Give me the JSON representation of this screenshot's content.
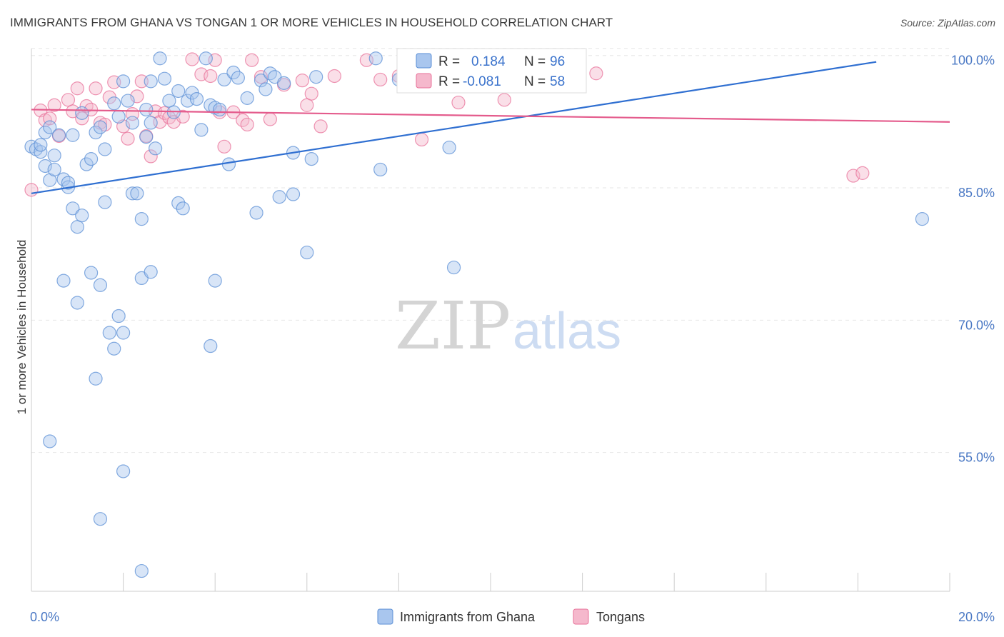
{
  "title": "IMMIGRANTS FROM GHANA VS TONGAN 1 OR MORE VEHICLES IN HOUSEHOLD CORRELATION CHART",
  "source": "Source: ZipAtlas.com",
  "watermark": {
    "zip": "ZIP",
    "atlas": "atlas"
  },
  "colors": {
    "ghana": "#5b8fd6",
    "ghana_fill": "#a9c6ee",
    "tongan": "#e8729a",
    "tongan_fill": "#f5b8cc"
  },
  "legend_top": [
    {
      "series": "ghana",
      "r_label": "R =",
      "r_value": "0.184",
      "n_label": "N =",
      "n_value": "96"
    },
    {
      "series": "tongan",
      "r_label": "R =",
      "r_value": "-0.081",
      "n_label": "N =",
      "n_value": "58"
    }
  ],
  "chart_data": {
    "type": "scatter",
    "title": "IMMIGRANTS FROM GHANA VS TONGAN 1 OR MORE VEHICLES IN HOUSEHOLD CORRELATION CHART",
    "xlabel": "",
    "ylabel": "1 or more Vehicles in Household",
    "xlim": [
      0,
      20
    ],
    "ylim": [
      40,
      102
    ],
    "x_tick_labels": [
      "0.0%",
      "20.0%"
    ],
    "y_ticks": [
      55,
      70,
      85,
      100
    ],
    "y_tick_labels": [
      "55.0%",
      "70.0%",
      "85.0%",
      "100.0%"
    ],
    "grid": true,
    "legend_position": "bottom",
    "series": [
      {
        "name": "Immigrants from Ghana",
        "key": "ghana",
        "trend": {
          "x0": 0,
          "y0": 85.1,
          "x1": 18.4,
          "y1": 100.0
        },
        "points": [
          [
            0.0,
            90.4
          ],
          [
            0.1,
            90.1
          ],
          [
            0.2,
            89.8
          ],
          [
            0.3,
            88.2
          ],
          [
            0.3,
            92.0
          ],
          [
            0.4,
            86.6
          ],
          [
            0.4,
            92.6
          ],
          [
            0.5,
            89.4
          ],
          [
            0.5,
            87.8
          ],
          [
            0.6,
            91.7
          ],
          [
            0.7,
            86.7
          ],
          [
            0.8,
            85.8
          ],
          [
            0.9,
            83.4
          ],
          [
            0.9,
            91.7
          ],
          [
            1.0,
            81.3
          ],
          [
            1.1,
            82.6
          ],
          [
            1.2,
            88.4
          ],
          [
            1.3,
            89.0
          ],
          [
            1.4,
            92.0
          ],
          [
            1.5,
            92.6
          ],
          [
            1.6,
            90.1
          ],
          [
            1.6,
            84.1
          ],
          [
            1.8,
            95.3
          ],
          [
            1.9,
            93.8
          ],
          [
            2.0,
            97.8
          ],
          [
            2.1,
            95.6
          ],
          [
            2.2,
            93.1
          ],
          [
            2.2,
            85.1
          ],
          [
            2.3,
            85.1
          ],
          [
            2.4,
            82.2
          ],
          [
            2.5,
            94.6
          ],
          [
            2.6,
            97.8
          ],
          [
            2.6,
            93.1
          ],
          [
            2.7,
            90.2
          ],
          [
            2.8,
            100.4
          ],
          [
            2.9,
            98.1
          ],
          [
            3.0,
            95.6
          ],
          [
            3.1,
            94.3
          ],
          [
            3.2,
            84.0
          ],
          [
            3.3,
            83.4
          ],
          [
            3.4,
            95.6
          ],
          [
            3.5,
            96.5
          ],
          [
            3.6,
            95.8
          ],
          [
            3.7,
            92.3
          ],
          [
            3.8,
            100.4
          ],
          [
            3.9,
            95.1
          ],
          [
            4.0,
            94.8
          ],
          [
            4.1,
            94.6
          ],
          [
            4.2,
            98.0
          ],
          [
            4.3,
            88.4
          ],
          [
            4.4,
            98.8
          ],
          [
            4.5,
            98.2
          ],
          [
            4.7,
            95.9
          ],
          [
            4.9,
            82.9
          ],
          [
            5.0,
            97.9
          ],
          [
            5.1,
            96.9
          ],
          [
            5.2,
            98.7
          ],
          [
            5.3,
            98.3
          ],
          [
            5.5,
            97.6
          ],
          [
            5.4,
            84.7
          ],
          [
            0.7,
            75.2
          ],
          [
            1.3,
            76.1
          ],
          [
            1.0,
            72.7
          ],
          [
            1.5,
            74.7
          ],
          [
            2.4,
            75.5
          ],
          [
            2.6,
            76.2
          ],
          [
            2.0,
            69.3
          ],
          [
            1.7,
            69.3
          ],
          [
            1.8,
            67.5
          ],
          [
            1.9,
            71.2
          ],
          [
            1.4,
            64.1
          ],
          [
            0.4,
            57.0
          ],
          [
            2.0,
            53.6
          ],
          [
            1.5,
            48.2
          ],
          [
            2.4,
            42.3
          ],
          [
            3.9,
            67.8
          ],
          [
            4.0,
            75.2
          ],
          [
            5.7,
            85.0
          ],
          [
            6.0,
            78.4
          ],
          [
            7.6,
            87.8
          ],
          [
            8.2,
            98.8
          ],
          [
            8.5,
            97.9
          ],
          [
            7.5,
            100.4
          ],
          [
            6.2,
            98.3
          ],
          [
            6.1,
            89.0
          ],
          [
            5.7,
            89.7
          ],
          [
            8.0,
            98.0
          ],
          [
            9.1,
            90.3
          ],
          [
            9.9,
            100.0
          ],
          [
            19.4,
            82.2
          ],
          [
            9.2,
            76.7
          ],
          [
            1.1,
            94.2
          ],
          [
            2.5,
            91.5
          ],
          [
            3.2,
            96.7
          ],
          [
            0.2,
            90.6
          ],
          [
            0.8,
            86.3
          ]
        ]
      },
      {
        "name": "Tongans",
        "key": "tongan",
        "trend": {
          "x0": 0,
          "y0": 94.6,
          "x1": 20,
          "y1": 93.2
        },
        "points": [
          [
            0.0,
            85.5
          ],
          [
            0.2,
            94.5
          ],
          [
            0.3,
            93.4
          ],
          [
            0.4,
            93.6
          ],
          [
            0.5,
            95.1
          ],
          [
            0.6,
            91.6
          ],
          [
            0.8,
            95.7
          ],
          [
            0.9,
            94.4
          ],
          [
            1.0,
            97.0
          ],
          [
            1.1,
            93.6
          ],
          [
            1.2,
            95.0
          ],
          [
            1.3,
            94.6
          ],
          [
            1.4,
            97.0
          ],
          [
            1.5,
            93.1
          ],
          [
            1.6,
            92.9
          ],
          [
            1.7,
            96.0
          ],
          [
            1.8,
            97.7
          ],
          [
            2.0,
            92.7
          ],
          [
            2.1,
            91.3
          ],
          [
            2.2,
            94.1
          ],
          [
            2.3,
            96.1
          ],
          [
            2.4,
            97.8
          ],
          [
            2.5,
            91.6
          ],
          [
            2.6,
            89.3
          ],
          [
            2.7,
            94.4
          ],
          [
            2.8,
            93.2
          ],
          [
            2.9,
            94.2
          ],
          [
            3.0,
            93.7
          ],
          [
            3.1,
            93.2
          ],
          [
            3.3,
            93.8
          ],
          [
            3.5,
            100.3
          ],
          [
            3.7,
            98.6
          ],
          [
            3.9,
            98.4
          ],
          [
            4.0,
            100.2
          ],
          [
            4.1,
            94.3
          ],
          [
            4.2,
            90.4
          ],
          [
            4.4,
            94.3
          ],
          [
            4.6,
            93.4
          ],
          [
            4.7,
            92.9
          ],
          [
            4.8,
            100.2
          ],
          [
            5.0,
            98.3
          ],
          [
            5.2,
            93.5
          ],
          [
            5.5,
            97.4
          ],
          [
            5.9,
            97.9
          ],
          [
            6.0,
            95.1
          ],
          [
            6.1,
            96.4
          ],
          [
            6.3,
            92.7
          ],
          [
            6.6,
            98.4
          ],
          [
            7.3,
            100.2
          ],
          [
            7.6,
            98.0
          ],
          [
            8.0,
            98.4
          ],
          [
            8.5,
            91.2
          ],
          [
            9.3,
            95.4
          ],
          [
            10.3,
            95.7
          ],
          [
            11.0,
            100.3
          ],
          [
            12.3,
            98.7
          ],
          [
            17.9,
            87.1
          ],
          [
            18.1,
            87.4
          ]
        ]
      }
    ]
  }
}
